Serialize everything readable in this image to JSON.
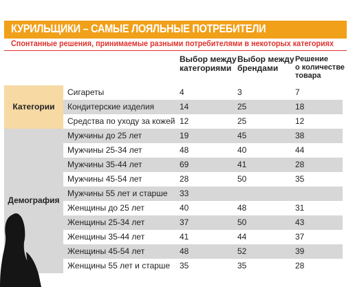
{
  "title": "КУРИЛЬЩИКИ – САМЫЕ ЛОЯЛЬНЫЕ ПОТРЕБИТЕЛИ",
  "subtitle": "Спонтанные решения, принимаемые разными потребителями в некоторых категориях",
  "columns": {
    "c1": [
      "Выбор между",
      "категориями"
    ],
    "c2": [
      "Выбор между",
      "брендами"
    ],
    "c3": [
      "Решение",
      "о количестве",
      "товара"
    ]
  },
  "groups": {
    "categories": "Категории",
    "demography": "Демография"
  },
  "rows": [
    {
      "label": "Сигареты",
      "v1": "4",
      "v2": "3",
      "v3": "7"
    },
    {
      "label": "Кондитерские изделия",
      "v1": "14",
      "v2": "25",
      "v3": "18"
    },
    {
      "label": "Средства по уходу за кожей",
      "v1": "12",
      "v2": "25",
      "v3": "12"
    },
    {
      "label": "Мужчины до 25 лет",
      "v1": "19",
      "v2": "45",
      "v3": "38"
    },
    {
      "label": "Мужчины 25-34 лет",
      "v1": "48",
      "v2": "40",
      "v3": "44"
    },
    {
      "label": "Мужчины 35-44 лет",
      "v1": "69",
      "v2": "41",
      "v3": "28"
    },
    {
      "label": "Мужчины 45-54 лет",
      "v1": "28",
      "v2": "50",
      "v3": "35"
    },
    {
      "label": "Мужчины 55 лет и старше",
      "v1": "33",
      "v2": "",
      "v3": ""
    },
    {
      "label": "Женщины до 25 лет",
      "v1": "40",
      "v2": "48",
      "v3": "31"
    },
    {
      "label": "Женщины 25-34 лет",
      "v1": "37",
      "v2": "50",
      "v3": "43"
    },
    {
      "label": "Женщины 35-44 лет",
      "v1": "41",
      "v2": "44",
      "v3": "37"
    },
    {
      "label": "Женщины 45-54 лет",
      "v1": "48",
      "v2": "52",
      "v3": "39"
    },
    {
      "label": "Женщины 55 лет и старше",
      "v1": "35",
      "v2": "35",
      "v3": "28"
    }
  ],
  "colors": {
    "accent": "#f1a019",
    "subtitle": "#e0322c",
    "shade": "#d7d7d7",
    "category_band": "#f6d9a3"
  }
}
